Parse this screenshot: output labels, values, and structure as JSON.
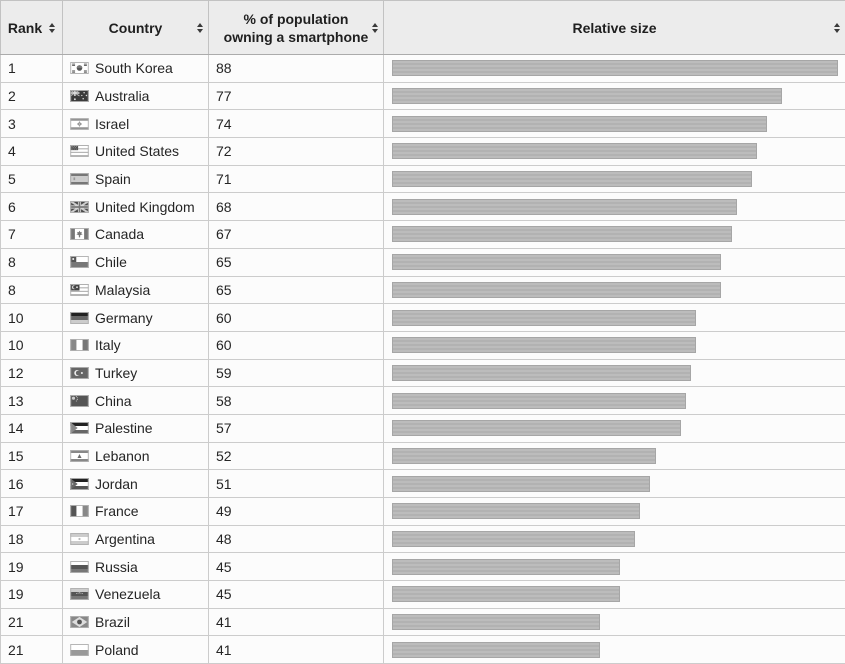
{
  "colors": {
    "header_bg": "#ececec",
    "cell_bg": "#fcfcfc",
    "border": "#cccccc",
    "outer_border": "#a5a5a5",
    "bar_fill": "#b5b5b5",
    "text": "#222222"
  },
  "table": {
    "columns": [
      {
        "label": "Rank",
        "sortable": true
      },
      {
        "label": "Country",
        "sortable": true
      },
      {
        "label": "% of population owning a smartphone",
        "sortable": true
      },
      {
        "label": "Relative size",
        "sortable": true
      }
    ],
    "bar_scale_max": 88,
    "rows": [
      {
        "rank": "1",
        "country": "South Korea",
        "percent": "88",
        "flag": "flag-south-korea"
      },
      {
        "rank": "2",
        "country": "Australia",
        "percent": "77",
        "flag": "flag-australia"
      },
      {
        "rank": "3",
        "country": "Israel",
        "percent": "74",
        "flag": "flag-israel"
      },
      {
        "rank": "4",
        "country": "United States",
        "percent": "72",
        "flag": "flag-united-states"
      },
      {
        "rank": "5",
        "country": "Spain",
        "percent": "71",
        "flag": "flag-spain"
      },
      {
        "rank": "6",
        "country": "United Kingdom",
        "percent": "68",
        "flag": "flag-united-kingdom"
      },
      {
        "rank": "7",
        "country": "Canada",
        "percent": "67",
        "flag": "flag-canada"
      },
      {
        "rank": "8",
        "country": "Chile",
        "percent": "65",
        "flag": "flag-chile"
      },
      {
        "rank": "8",
        "country": "Malaysia",
        "percent": "65",
        "flag": "flag-malaysia"
      },
      {
        "rank": "10",
        "country": "Germany",
        "percent": "60",
        "flag": "flag-germany"
      },
      {
        "rank": "10",
        "country": "Italy",
        "percent": "60",
        "flag": "flag-italy"
      },
      {
        "rank": "12",
        "country": "Turkey",
        "percent": "59",
        "flag": "flag-turkey"
      },
      {
        "rank": "13",
        "country": "China",
        "percent": "58",
        "flag": "flag-china"
      },
      {
        "rank": "14",
        "country": "Palestine",
        "percent": "57",
        "flag": "flag-palestine"
      },
      {
        "rank": "15",
        "country": "Lebanon",
        "percent": "52",
        "flag": "flag-lebanon"
      },
      {
        "rank": "16",
        "country": "Jordan",
        "percent": "51",
        "flag": "flag-jordan"
      },
      {
        "rank": "17",
        "country": "France",
        "percent": "49",
        "flag": "flag-france"
      },
      {
        "rank": "18",
        "country": "Argentina",
        "percent": "48",
        "flag": "flag-argentina"
      },
      {
        "rank": "19",
        "country": "Russia",
        "percent": "45",
        "flag": "flag-russia"
      },
      {
        "rank": "19",
        "country": "Venezuela",
        "percent": "45",
        "flag": "flag-venezuela"
      },
      {
        "rank": "21",
        "country": "Brazil",
        "percent": "41",
        "flag": "flag-brazil"
      },
      {
        "rank": "21",
        "country": "Poland",
        "percent": "41",
        "flag": "flag-poland"
      }
    ]
  },
  "chart_data": {
    "type": "bar",
    "orientation": "horizontal",
    "title": "",
    "xlabel": "% of population owning a smartphone",
    "ylabel": "Country",
    "xlim": [
      0,
      88
    ],
    "categories": [
      "South Korea",
      "Australia",
      "Israel",
      "United States",
      "Spain",
      "United Kingdom",
      "Canada",
      "Chile",
      "Malaysia",
      "Germany",
      "Italy",
      "Turkey",
      "China",
      "Palestine",
      "Lebanon",
      "Jordan",
      "France",
      "Argentina",
      "Russia",
      "Venezuela",
      "Brazil",
      "Poland"
    ],
    "values": [
      88,
      77,
      74,
      72,
      71,
      68,
      67,
      65,
      65,
      60,
      60,
      59,
      58,
      57,
      52,
      51,
      49,
      48,
      45,
      45,
      41,
      41
    ],
    "ranks": [
      1,
      2,
      3,
      4,
      5,
      6,
      7,
      8,
      8,
      10,
      10,
      12,
      13,
      14,
      15,
      16,
      17,
      18,
      19,
      19,
      21,
      21
    ],
    "legend": null,
    "grid": false
  }
}
